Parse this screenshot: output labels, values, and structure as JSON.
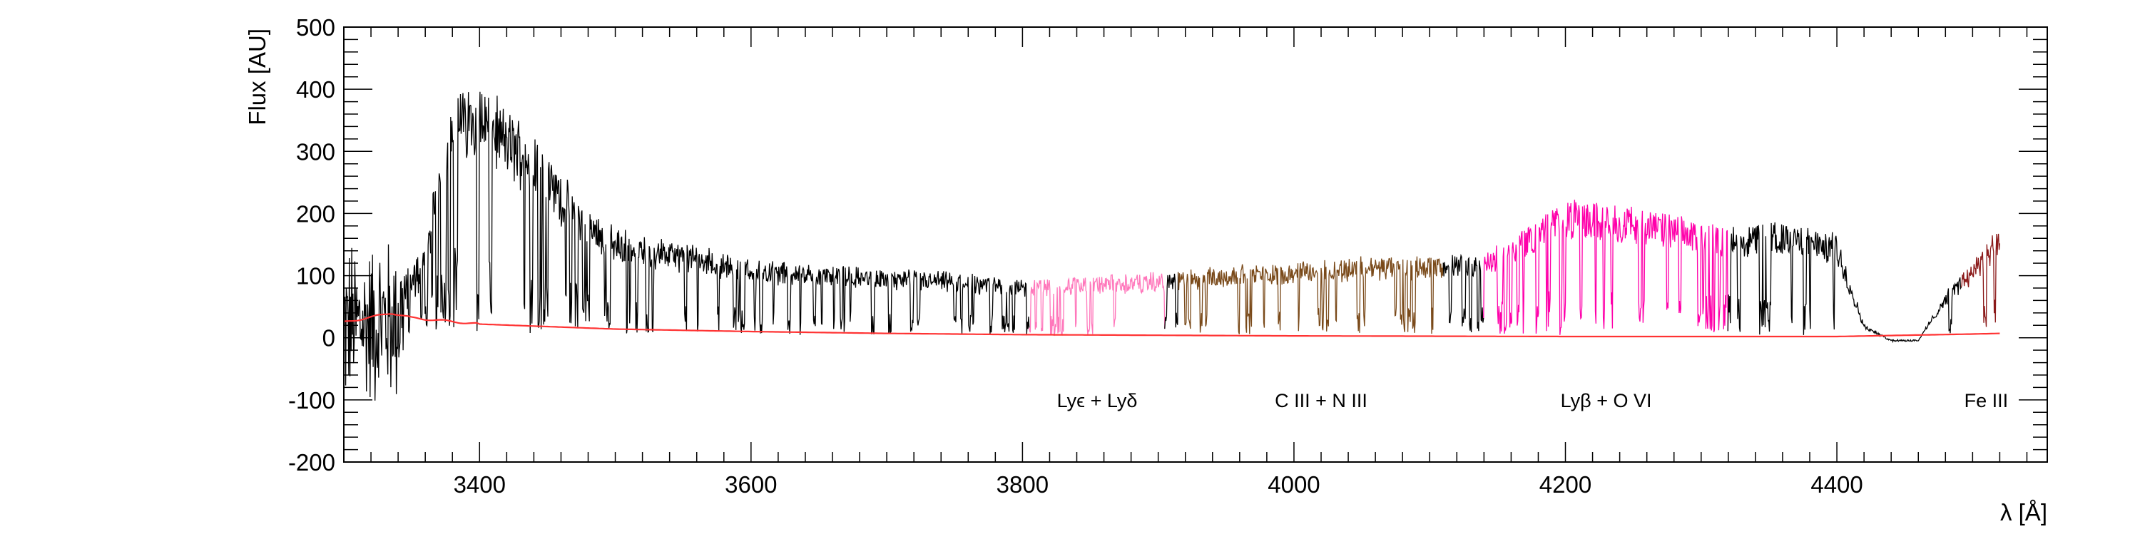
{
  "chart_data": {
    "type": "line",
    "title": "",
    "xlabel": "λ [Å]",
    "ylabel": "Flux [AU]",
    "xlim": [
      3300,
      4555
    ],
    "ylim": [
      -200,
      500
    ],
    "x_ticks": [
      3400,
      3600,
      3800,
      4000,
      4200,
      4400
    ],
    "x_tick_labels": [
      "3400",
      "3600",
      "3800",
      "4000",
      "4200",
      "4400"
    ],
    "y_ticks": [
      -200,
      -100,
      0,
      100,
      200,
      300,
      400,
      500
    ],
    "y_tick_labels": [
      "-200",
      "-100",
      "0",
      "100",
      "200",
      "300",
      "400",
      "500"
    ],
    "grid": false,
    "series": [
      {
        "color": "#000000",
        "x": [
          3300,
          3320,
          3340,
          3360,
          3380,
          3400,
          3420,
          3440,
          3460,
          3480,
          3500,
          3550,
          3600,
          3650,
          3700,
          3750,
          3780,
          3800,
          3900,
          3950,
          4000,
          4050,
          4100,
          4140,
          4200,
          4250,
          4300,
          4320,
          4360,
          4400,
          4420,
          4440,
          4460,
          4480,
          4500,
          4520
        ],
        "continuum": [
          20,
          25,
          30,
          150,
          380,
          400,
          350,
          320,
          250,
          200,
          165,
          145,
          120,
          112,
          105,
          100,
          95,
          90,
          100,
          110,
          118,
          125,
          128,
          128,
          215,
          205,
          180,
          175,
          180,
          160,
          20,
          -5,
          -5,
          70,
          120,
          170
        ],
        "noise": [
          100,
          100,
          100,
          40,
          30,
          30,
          30,
          30,
          25,
          20,
          20,
          15,
          15,
          10,
          10,
          10,
          10,
          10,
          8,
          8,
          8,
          8,
          8,
          8,
          8,
          8,
          8,
          8,
          8,
          8,
          5,
          3,
          3,
          5,
          8,
          10
        ]
      },
      {
        "color": "#ff77bb",
        "x_range": [
          3805,
          3905
        ]
      },
      {
        "color": "#7a4a1a",
        "x_range": [
          3915,
          4110
        ]
      },
      {
        "color": "#ff00aa",
        "x_range": [
          4140,
          4320
        ]
      },
      {
        "color": "#8b1a1a",
        "x_range": [
          4492,
          4522
        ]
      },
      {
        "color": "#ff3333",
        "x": [
          3300,
          3320,
          3335,
          3350,
          3370,
          3400,
          3450,
          3500,
          3600,
          3700,
          3800,
          4000,
          4200,
          4400,
          4500,
          4520
        ],
        "values": [
          25,
          33,
          40,
          32,
          28,
          22,
          18,
          14,
          10,
          7,
          5,
          3,
          2,
          2,
          6,
          7
        ]
      }
    ],
    "annotations": [
      {
        "text": "Lyϵ + Lyδ",
        "x": 3855,
        "y": -100
      },
      {
        "text": "C III + N III",
        "x": 4020,
        "y": -100
      },
      {
        "text": "Lyβ + O VI",
        "x": 4230,
        "y": -100
      },
      {
        "text": "Fe III",
        "x": 4510,
        "y": -100
      }
    ]
  }
}
